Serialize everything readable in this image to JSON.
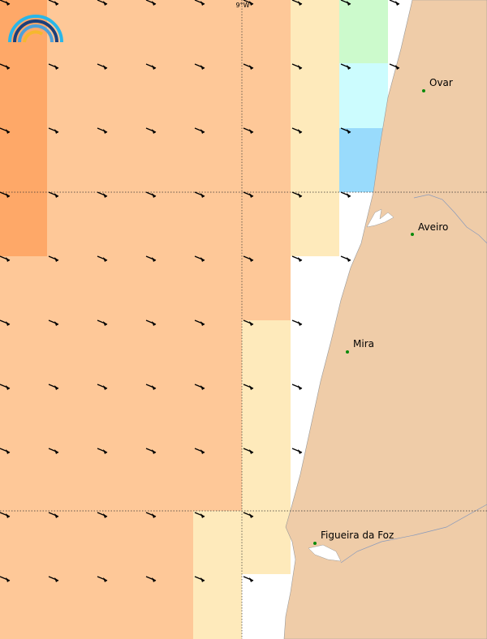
{
  "graticule_label": "9°W",
  "places": [
    {
      "name": "Ovar"
    },
    {
      "name": "Aveiro"
    },
    {
      "name": "Mira"
    },
    {
      "name": "Figueira da Foz"
    }
  ]
}
